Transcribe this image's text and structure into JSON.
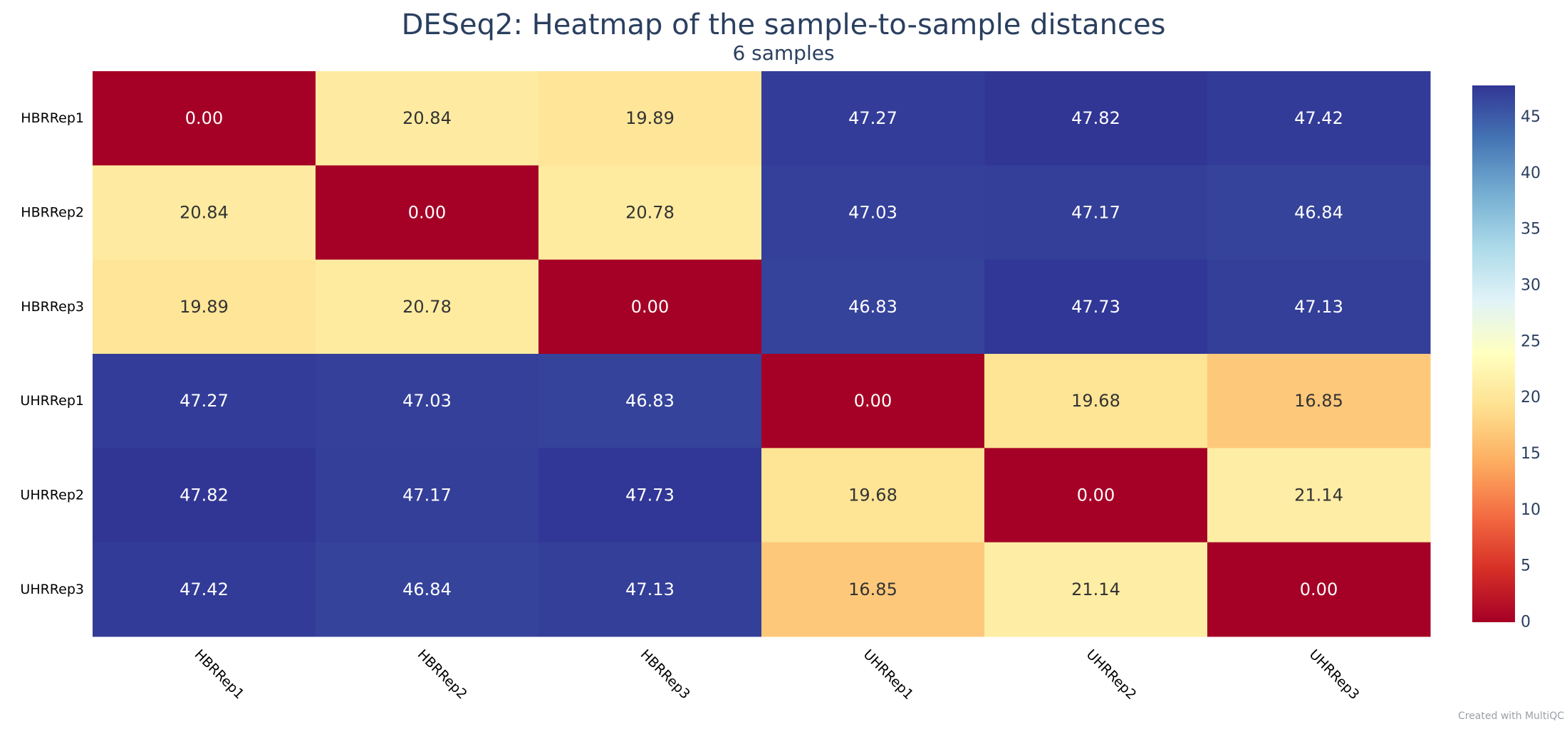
{
  "chart_data": {
    "type": "heatmap",
    "title": "DESeq2: Heatmap of the sample-to-sample distances",
    "subtitle": "6 samples",
    "rows": [
      "HBRRep1",
      "HBRRep2",
      "HBRRep3",
      "UHRRep1",
      "UHRRep2",
      "UHRRep3"
    ],
    "columns": [
      "HBRRep1",
      "HBRRep2",
      "HBRRep3",
      "UHRRep1",
      "UHRRep2",
      "UHRRep3"
    ],
    "values": [
      [
        0.0,
        20.84,
        19.89,
        47.27,
        47.82,
        47.42
      ],
      [
        20.84,
        0.0,
        20.78,
        47.03,
        47.17,
        46.84
      ],
      [
        19.89,
        20.78,
        0.0,
        46.83,
        47.73,
        47.13
      ],
      [
        47.27,
        47.03,
        46.83,
        0.0,
        19.68,
        16.85
      ],
      [
        47.82,
        47.17,
        47.73,
        19.68,
        0.0,
        21.14
      ],
      [
        47.42,
        46.84,
        47.13,
        16.85,
        21.14,
        0.0
      ]
    ],
    "value_format": "2 decimals",
    "colorscale": {
      "name": "RdYlBu",
      "range": [
        0,
        47.82
      ],
      "ticks": [
        0,
        5,
        10,
        15,
        20,
        25,
        30,
        35,
        40,
        45
      ],
      "colors": [
        "#a50026",
        "#d73027",
        "#f46d43",
        "#fdae61",
        "#fee090",
        "#ffffbf",
        "#e0f3f8",
        "#abd9e9",
        "#74add1",
        "#4575b4",
        "#313695"
      ]
    },
    "legend": "colorbar right"
  },
  "credit": "Created with MultiQC"
}
